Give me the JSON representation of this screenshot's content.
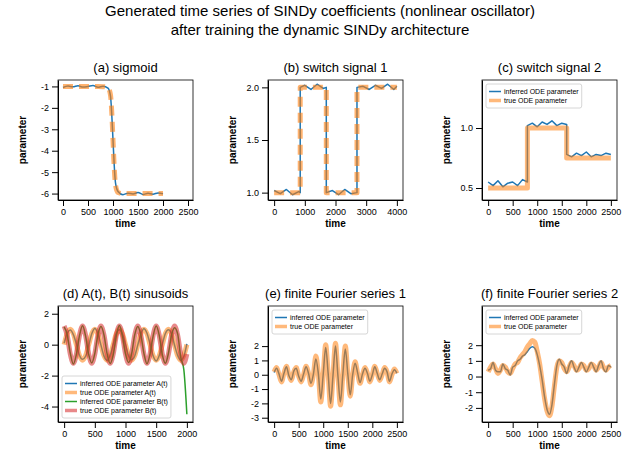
{
  "title": "Generated time series of SINDy coefficients (nonlinear oscillator)",
  "subtitle": "after training the dynamic SINDy architecture",
  "chart_data": [
    {
      "type": "line",
      "title": "(a) sigmoid",
      "x_label": "time",
      "y_label": "parameter",
      "xlim": [
        -100,
        2600
      ],
      "xticks": [
        0,
        500,
        1000,
        1500,
        2000,
        2500
      ],
      "ylim": [
        -6.3,
        -0.7
      ],
      "yticks": [
        -6,
        -5,
        -4,
        -3,
        -2,
        -1
      ],
      "x": [
        0,
        100,
        200,
        300,
        400,
        500,
        600,
        700,
        800,
        900,
        950,
        975,
        1000,
        1025,
        1050,
        1100,
        1200,
        1300,
        1400,
        1500,
        1600,
        1700,
        1800,
        1900,
        2000
      ],
      "series": [
        {
          "color": "#1f77b4",
          "line_style": "thin",
          "values": [
            -1.05,
            -0.98,
            -1.02,
            -0.97,
            -1.03,
            -1.0,
            -0.96,
            -1.04,
            -0.99,
            -1.08,
            -1.45,
            -2.3,
            -3.5,
            -4.7,
            -5.5,
            -5.9,
            -6.05,
            -5.98,
            -6.02,
            -5.95,
            -6.04,
            -5.99,
            -6.03,
            -5.97,
            -6.01
          ]
        },
        {
          "color": "#ff7f0e",
          "line_style": "thick-dashed",
          "values": [
            -1,
            -1,
            -1,
            -1,
            -1,
            -1,
            -1,
            -1,
            -1.01,
            -1.05,
            -1.4,
            -2.2,
            -3.5,
            -4.8,
            -5.6,
            -5.95,
            -6,
            -6,
            -6,
            -6,
            -6,
            -6,
            -6,
            -6,
            -6
          ]
        }
      ]
    },
    {
      "type": "line",
      "title": "(b) switch signal 1",
      "x_label": "time",
      "y_label": "parameter",
      "xlim": [
        -200,
        4200
      ],
      "xticks": [
        0,
        1000,
        2000,
        3000,
        4000
      ],
      "ylim": [
        0.93,
        2.07
      ],
      "yticks": [
        {
          "value": 1,
          "label": "1.0"
        },
        {
          "value": 1.5,
          "label": "1.5"
        },
        {
          "value": 2,
          "label": "2.0"
        }
      ],
      "x": [
        0,
        200,
        400,
        600,
        800,
        850,
        850,
        1000,
        1200,
        1400,
        1600,
        1700,
        1700,
        1900,
        2100,
        2300,
        2500,
        2700,
        2700,
        2900,
        3100,
        3300,
        3500,
        3700,
        3900,
        4000
      ],
      "series": [
        {
          "color": "#1f77b4",
          "line_style": "thin",
          "values": [
            1.02,
            0.99,
            1.03,
            0.98,
            1.01,
            1.0,
            2.0,
            2.02,
            1.98,
            2.03,
            1.99,
            2.0,
            1.0,
            1.02,
            0.98,
            1.03,
            0.99,
            1.0,
            2.0,
            2.01,
            1.98,
            2.02,
            1.99,
            2.03,
            1.98,
            2.01
          ]
        },
        {
          "color": "#ff7f0e",
          "line_style": "thick-dashed",
          "values": [
            1,
            1,
            1,
            1,
            1,
            1,
            2,
            2,
            2,
            2,
            2,
            2,
            1,
            1,
            1,
            1,
            1,
            1,
            2,
            2,
            2,
            2,
            2,
            2,
            2,
            2
          ]
        }
      ]
    },
    {
      "type": "line",
      "title": "(c) switch signal 2",
      "x_label": "time",
      "y_label": "parameter",
      "legend": "upper left",
      "xlim": [
        -125,
        2625
      ],
      "xticks": [
        0,
        500,
        1000,
        1500,
        2000,
        2500
      ],
      "ylim": [
        0.4,
        1.4
      ],
      "yticks": [
        {
          "value": 0.5,
          "label": "0.5"
        },
        {
          "value": 1,
          "label": "1.0"
        }
      ],
      "x": [
        0,
        100,
        200,
        300,
        400,
        500,
        600,
        700,
        800,
        800,
        900,
        1000,
        1100,
        1200,
        1300,
        1400,
        1500,
        1600,
        1600,
        1700,
        1800,
        1900,
        2000,
        2100,
        2200,
        2300,
        2400,
        2500
      ],
      "series": [
        {
          "name": "inferred ODE parameter",
          "color": "#1f77b4",
          "line_style": "thin",
          "values": [
            0.55,
            0.52,
            0.56,
            0.51,
            0.54,
            0.55,
            0.52,
            0.57,
            0.55,
            1.02,
            1.04,
            1.01,
            1.05,
            1.03,
            1.06,
            1.02,
            1.04,
            1.03,
            0.78,
            0.76,
            0.79,
            0.77,
            0.8,
            0.76,
            0.78,
            0.77,
            0.79,
            0.78
          ]
        },
        {
          "name": "true ODE parameter",
          "color": "#ff7f0e",
          "line_style": "thick",
          "values": [
            0.5,
            0.5,
            0.5,
            0.5,
            0.5,
            0.5,
            0.5,
            0.5,
            0.5,
            1,
            1,
            1,
            1,
            1,
            1,
            1,
            1,
            1,
            0.75,
            0.75,
            0.75,
            0.75,
            0.75,
            0.75,
            0.75,
            0.75,
            0.75,
            0.75
          ]
        }
      ]
    },
    {
      "type": "line",
      "title": "(d) A(t), B(t) sinusoids",
      "x_label": "time",
      "y_label": "parameter",
      "legend": "lower left",
      "xlim": [
        -100,
        2100
      ],
      "xticks": [
        0,
        500,
        1000,
        1500,
        2000
      ],
      "ylim": [
        -5,
        2.5
      ],
      "yticks": [
        -4,
        -2,
        0,
        2
      ],
      "x": [
        0,
        50,
        100,
        150,
        200,
        250,
        300,
        350,
        400,
        450,
        500,
        550,
        600,
        650,
        700,
        750,
        800,
        850,
        900,
        950,
        1000,
        1050,
        1100,
        1150,
        1200,
        1250,
        1300,
        1350,
        1400,
        1450,
        1500,
        1550,
        1600,
        1650,
        1700,
        1750,
        1800,
        1850,
        1900,
        1950,
        2000
      ],
      "series": [
        {
          "name": "inferred ODE parameter A(t)",
          "color": "#1f77b4",
          "line_style": "thin",
          "values": [
            0.1,
            0.75,
            0.95,
            0.65,
            0.05,
            -0.68,
            -0.95,
            -0.75,
            -0.05,
            0.7,
            1.05,
            0.72,
            -0.03,
            -0.74,
            -1.02,
            -0.69,
            0.04,
            0.73,
            0.97,
            0.68,
            0.02,
            -0.7,
            -0.98,
            -0.73,
            -0.02,
            0.68,
            1.03,
            0.74,
            0.05,
            -0.72,
            -1.05,
            -0.7,
            0.03,
            0.72,
            0.96,
            0.7,
            -0.04,
            -0.69,
            -1.0,
            -0.76,
            0.05
          ]
        },
        {
          "name": "true ODE parameter A(t)",
          "color": "#ff7f0e",
          "line_style": "thick",
          "values": [
            0,
            0.71,
            1,
            0.71,
            0,
            -0.71,
            -1,
            -0.71,
            0,
            0.71,
            1,
            0.71,
            0,
            -0.71,
            -1,
            -0.71,
            0,
            0.71,
            1,
            0.71,
            0,
            -0.71,
            -1,
            -0.71,
            0,
            0.71,
            1,
            0.71,
            0,
            -0.71,
            -1,
            -0.71,
            0,
            0.71,
            1,
            0.71,
            0,
            -0.71,
            -1,
            -0.71,
            0
          ]
        },
        {
          "name": "inferred ODE parameter B(t)",
          "color": "#2ca02c",
          "line_style": "thin",
          "values": [
            1.15,
            0.65,
            -0.55,
            -1.25,
            -0.62,
            0.58,
            1.22,
            0.55,
            -0.63,
            -1.18,
            -0.57,
            0.64,
            1.17,
            0.62,
            -0.58,
            -1.22,
            -0.65,
            0.57,
            1.24,
            0.58,
            -0.6,
            -1.15,
            -0.59,
            0.63,
            1.18,
            0.64,
            -0.56,
            -1.23,
            -0.6,
            0.55,
            1.2,
            0.6,
            -0.65,
            -1.2,
            -0.55,
            0.62,
            1.1,
            0.7,
            -0.8,
            -1.6,
            -4.5
          ]
        },
        {
          "name": "true ODE parameter B(t)",
          "color": "#d62728",
          "line_style": "thick",
          "values": [
            1.2,
            0.6,
            -0.6,
            -1.2,
            -0.6,
            0.6,
            1.2,
            0.6,
            -0.6,
            -1.2,
            -0.6,
            0.6,
            1.2,
            0.6,
            -0.6,
            -1.2,
            -0.6,
            0.6,
            1.2,
            0.6,
            -0.6,
            -1.2,
            -0.6,
            0.6,
            1.2,
            0.6,
            -0.6,
            -1.2,
            -0.6,
            0.6,
            1.2,
            0.6,
            -0.6,
            -1.2,
            -0.6,
            0.6,
            1.2,
            0.6,
            -0.6,
            -1.2,
            -0.6
          ]
        }
      ]
    },
    {
      "type": "line",
      "title": "(e) finite Fourier series 1",
      "x_label": "time",
      "y_label": "parameter",
      "legend": "upper left",
      "xlim": [
        -125,
        2625
      ],
      "xticks": [
        0,
        500,
        1000,
        1500,
        2000,
        2500
      ],
      "ylim": [
        -3.3,
        4.8
      ],
      "yticks": [
        -3,
        -2,
        -1,
        0,
        1,
        2
      ],
      "x": [
        0,
        50,
        100,
        150,
        200,
        250,
        300,
        350,
        400,
        450,
        500,
        550,
        600,
        650,
        700,
        750,
        800,
        850,
        900,
        950,
        1000,
        1050,
        1100,
        1150,
        1200,
        1250,
        1300,
        1350,
        1400,
        1450,
        1500,
        1550,
        1600,
        1650,
        1700,
        1750,
        1800,
        1850,
        1900,
        1950,
        2000,
        2050,
        2100,
        2150,
        2200,
        2250,
        2300,
        2350,
        2400,
        2450,
        2500
      ],
      "series": [
        {
          "name": "inferred ODE parameter",
          "color": "#1f77b4",
          "line_style": "thin",
          "values": [
            0.15,
            0.45,
            0.05,
            -0.45,
            0.1,
            0.55,
            -0.05,
            -0.35,
            0.25,
            0.45,
            -0.1,
            -0.45,
            0.05,
            0.55,
            0.1,
            -0.6,
            0.05,
            1.1,
            0.1,
            -1.7,
            0.05,
            1.9,
            0.1,
            -2.0,
            0.0,
            2.0,
            -0.1,
            -1.9,
            0.05,
            1.8,
            0.1,
            -1.4,
            0.0,
            0.8,
            0.15,
            -0.55,
            0.05,
            0.45,
            0.1,
            -0.45,
            0.0,
            0.55,
            0.1,
            -0.35,
            0.05,
            0.45,
            0.2,
            -0.45,
            0.05,
            0.35,
            0.1
          ]
        },
        {
          "name": "true ODE parameter",
          "color": "#ff7f0e",
          "line_style": "thick",
          "values": [
            0.2,
            0.5,
            0.0,
            -0.5,
            0.1,
            0.6,
            0.0,
            -0.4,
            0.2,
            0.5,
            -0.1,
            -0.5,
            0.0,
            0.6,
            0.1,
            -0.7,
            0.0,
            1.3,
            0.1,
            -1.9,
            0.0,
            2.1,
            0.1,
            -2.2,
            0.0,
            2.2,
            -0.1,
            -2.1,
            0.0,
            2.0,
            0.1,
            -1.5,
            0.0,
            0.9,
            0.1,
            -0.6,
            0.0,
            0.5,
            0.1,
            -0.5,
            0.0,
            0.6,
            0.1,
            -0.4,
            0.0,
            0.5,
            0.2,
            -0.5,
            0.0,
            0.4,
            0.1
          ]
        }
      ]
    },
    {
      "type": "line",
      "title": "(f) finite Fourier series 2",
      "x_label": "time",
      "y_label": "parameter",
      "legend": "upper left",
      "xlim": [
        -125,
        2625
      ],
      "xticks": [
        0,
        500,
        1000,
        1500,
        2000,
        2500
      ],
      "ylim": [
        -2.9,
        4.5
      ],
      "yticks": [
        -2,
        -1,
        0,
        1,
        2
      ],
      "x": [
        0,
        50,
        100,
        150,
        200,
        250,
        300,
        350,
        400,
        450,
        500,
        550,
        600,
        650,
        700,
        750,
        800,
        850,
        900,
        950,
        1000,
        1050,
        1100,
        1150,
        1200,
        1250,
        1300,
        1350,
        1400,
        1450,
        1500,
        1550,
        1600,
        1650,
        1700,
        1750,
        1800,
        1850,
        1900,
        1950,
        2000,
        2050,
        2100,
        2150,
        2200,
        2250,
        2300,
        2350,
        2400,
        2450,
        2500
      ],
      "series": [
        {
          "name": "inferred ODE parameter",
          "color": "#1f77b4",
          "line_style": "thin",
          "values": [
            0.4,
            0.5,
            0.9,
            0.4,
            0.3,
            0.3,
            0.8,
            0.5,
            0.4,
            0.1,
            0.6,
            0.7,
            1.0,
            1.1,
            1.3,
            1.4,
            1.6,
            1.8,
            1.9,
            1.8,
            1.4,
            0.7,
            -0.2,
            -1.3,
            -2.1,
            -2.4,
            -1.8,
            -0.5,
            0.7,
            1.1,
            0.8,
            0.6,
            0.2,
            0.7,
            1.0,
            0.6,
            0.3,
            0.6,
            0.9,
            0.6,
            0.3,
            0.6,
            0.9,
            0.6,
            0.3,
            0.7,
            1.0,
            0.5,
            0.3,
            0.7,
            0.6
          ]
        },
        {
          "name": "true ODE parameter",
          "color": "#ff7f0e",
          "line_style": "thick",
          "values": [
            0.3,
            0.6,
            0.8,
            0.5,
            0.2,
            0.4,
            0.7,
            0.6,
            0.3,
            0.2,
            0.5,
            0.8,
            0.9,
            1.2,
            1.4,
            1.6,
            1.9,
            2.1,
            2.3,
            2.2,
            1.6,
            0.8,
            -0.3,
            -1.4,
            -2.2,
            -2.5,
            -1.9,
            -0.6,
            0.6,
            1.0,
            0.9,
            0.5,
            0.3,
            0.6,
            0.9,
            0.7,
            0.4,
            0.5,
            0.8,
            0.7,
            0.4,
            0.5,
            0.8,
            0.7,
            0.4,
            0.6,
            0.9,
            0.6,
            0.4,
            0.6,
            0.7
          ]
        }
      ]
    }
  ]
}
